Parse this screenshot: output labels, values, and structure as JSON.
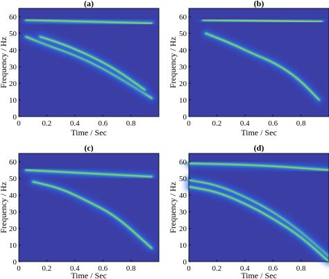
{
  "background_color": "#3b3fa5",
  "colormap": [
    "#3e26a8",
    "#2f5ef6",
    "#12a3e0",
    "#1ec8b0",
    "#9cd44a",
    "#f5e83a"
  ],
  "chart_data": [
    {
      "type": "heatmap",
      "title": "(a)",
      "xlabel": "Time / Sec",
      "ylabel": "Frequency / Hz",
      "xlim": [
        0,
        1
      ],
      "ylim": [
        0,
        65
      ],
      "xticks": [
        0,
        0.2,
        0.4,
        0.6,
        0.8
      ],
      "xtick_labels": [
        "0",
        "0.2",
        "0.4",
        "0.6",
        "0.8"
      ],
      "yticks": [
        0,
        10,
        20,
        30,
        40,
        50,
        60
      ],
      "ytick_labels": [
        "0",
        "10",
        "20",
        "30",
        "40",
        "50",
        "60"
      ],
      "components": [
        {
          "t": [
            0.05,
            0.95
          ],
          "f": [
            58,
            56
          ]
        },
        {
          "t": [
            0.05,
            0.2,
            0.4,
            0.6,
            0.8,
            0.95
          ],
          "f": [
            48,
            43,
            37,
            29,
            19,
            11
          ]
        },
        {
          "t": [
            0.15,
            0.3,
            0.5,
            0.7,
            0.9
          ],
          "f": [
            48,
            44,
            37,
            28,
            16
          ]
        }
      ]
    },
    {
      "type": "heatmap",
      "title": "(b)",
      "xlabel": "Time / Sec",
      "ylabel": "Frequency / Hz",
      "xlim": [
        0,
        1
      ],
      "ylim": [
        0,
        65
      ],
      "xticks": [
        0,
        0.2,
        0.4,
        0.6,
        0.8
      ],
      "xtick_labels": [
        "0",
        "0.2",
        "0.4",
        "0.6",
        "0.8"
      ],
      "yticks": [
        0,
        10,
        20,
        30,
        40,
        50,
        60
      ],
      "ytick_labels": [
        "0",
        "10",
        "20",
        "30",
        "40",
        "50",
        "60"
      ],
      "components": [
        {
          "t": [
            0.1,
            0.95
          ],
          "f": [
            58,
            57
          ]
        },
        {
          "t": [
            0.12,
            0.3,
            0.45,
            0.62,
            0.78,
            0.93
          ],
          "f": [
            50,
            44,
            38,
            32,
            23,
            10
          ]
        }
      ]
    },
    {
      "type": "heatmap",
      "title": "(c)",
      "xlabel": "Time / Sec",
      "ylabel": "Frequency / Hz",
      "xlim": [
        0,
        1
      ],
      "ylim": [
        0,
        65
      ],
      "xticks": [
        0,
        0.2,
        0.4,
        0.6,
        0.8
      ],
      "xtick_labels": [
        "0",
        "0.2",
        "0.4",
        "0.6",
        "0.8"
      ],
      "yticks": [
        0,
        10,
        20,
        30,
        40,
        50,
        60
      ],
      "ytick_labels": [
        "0",
        "10",
        "20",
        "30",
        "40",
        "50",
        "60"
      ],
      "components": [
        {
          "t": [
            0.05,
            0.95
          ],
          "f": [
            55,
            51
          ]
        },
        {
          "t": [
            0.1,
            0.3,
            0.5,
            0.7,
            0.95
          ],
          "f": [
            48,
            44,
            36,
            27,
            8
          ]
        }
      ]
    },
    {
      "type": "heatmap",
      "title": "(d)",
      "xlabel": "Time / Sec",
      "ylabel": "Frequency / Hz",
      "xlim": [
        0,
        1
      ],
      "ylim": [
        0,
        65
      ],
      "xticks": [
        0,
        0.2,
        0.4,
        0.6,
        0.8
      ],
      "xtick_labels": [
        "0",
        "0.2",
        "0.4",
        "0.6",
        "0.8"
      ],
      "yticks": [
        0,
        10,
        20,
        30,
        40,
        50,
        60
      ],
      "ytick_labels": [
        "0",
        "10",
        "20",
        "30",
        "40",
        "50",
        "60"
      ],
      "components": [
        {
          "t": [
            0.0,
            0.5,
            1.0
          ],
          "f": [
            59,
            58,
            55
          ]
        },
        {
          "t": [
            0.0,
            0.2,
            0.4,
            0.6,
            0.8,
            1.0
          ],
          "f": [
            49,
            46,
            39,
            30,
            18,
            3
          ]
        },
        {
          "t": [
            0.0,
            0.2,
            0.4,
            0.6,
            0.8,
            1.0
          ],
          "f": [
            45,
            42,
            35,
            26,
            15,
            0
          ]
        }
      ]
    }
  ]
}
